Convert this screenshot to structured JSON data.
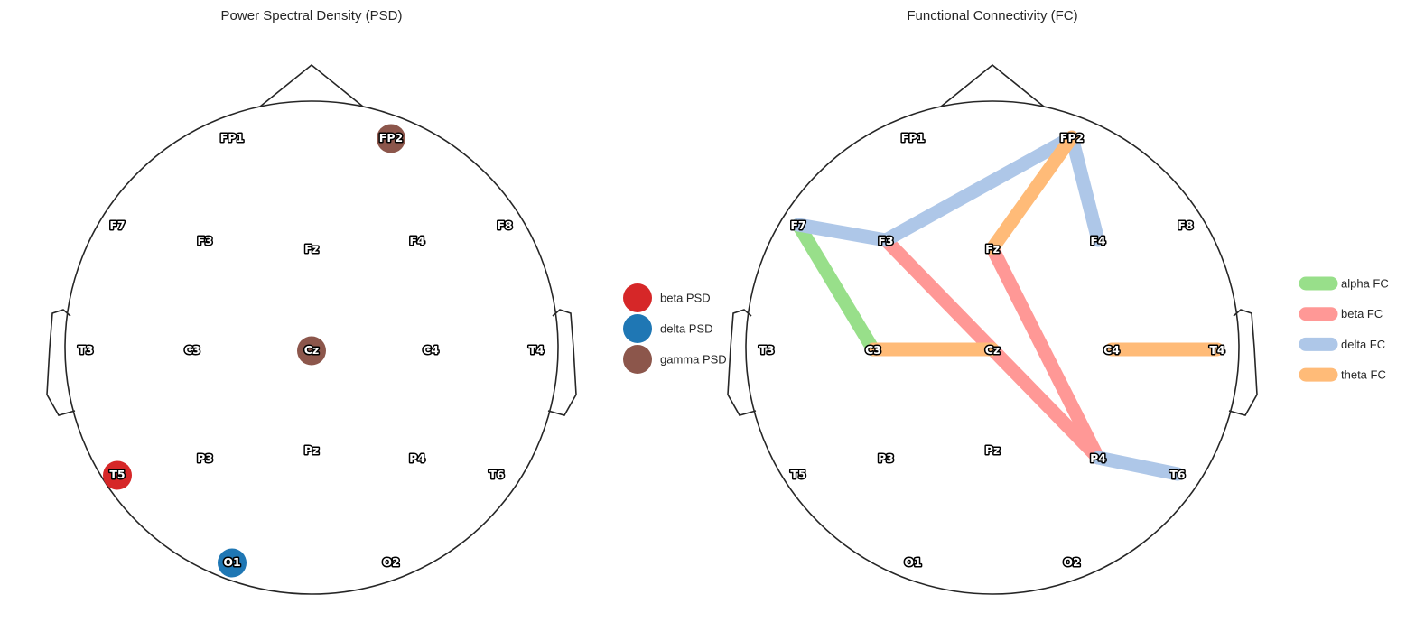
{
  "figure": {
    "panels": [
      {
        "id": "psd",
        "title": "Power Spectral Density (PSD)",
        "electrodes": [
          "FP1",
          "FP2",
          "F7",
          "F3",
          "Fz",
          "F4",
          "F8",
          "T3",
          "C3",
          "Cz",
          "C4",
          "T4",
          "T5",
          "P3",
          "Pz",
          "P4",
          "T6",
          "O1",
          "O2"
        ],
        "markers": [
          {
            "electrode": "FP2",
            "band": "gamma"
          },
          {
            "electrode": "Cz",
            "band": "gamma"
          },
          {
            "electrode": "T5",
            "band": "beta"
          },
          {
            "electrode": "O1",
            "band": "delta"
          }
        ],
        "legend": [
          {
            "label": "beta PSD",
            "color": "#d62728"
          },
          {
            "label": "delta PSD",
            "color": "#1f77b4"
          },
          {
            "label": "gamma PSD",
            "color": "#8c564b"
          }
        ]
      },
      {
        "id": "fc",
        "title": "Functional Connectivity (FC)",
        "electrodes": [
          "FP1",
          "FP2",
          "F7",
          "F3",
          "Fz",
          "F4",
          "F8",
          "T3",
          "C3",
          "Cz",
          "C4",
          "T4",
          "T5",
          "P3",
          "Pz",
          "P4",
          "T6",
          "O1",
          "O2"
        ],
        "connections": [
          {
            "from": "F7",
            "to": "C3",
            "band": "alpha"
          },
          {
            "from": "F3",
            "to": "P4",
            "band": "beta"
          },
          {
            "from": "Fz",
            "to": "P4",
            "band": "beta"
          },
          {
            "from": "F7",
            "to": "F3",
            "band": "delta"
          },
          {
            "from": "F3",
            "to": "FP2",
            "band": "delta"
          },
          {
            "from": "FP2",
            "to": "F4",
            "band": "delta"
          },
          {
            "from": "P4",
            "to": "T6",
            "band": "delta"
          },
          {
            "from": "FP2",
            "to": "Fz",
            "band": "theta"
          },
          {
            "from": "C3",
            "to": "Cz",
            "band": "theta"
          },
          {
            "from": "C4",
            "to": "T4",
            "band": "theta"
          }
        ],
        "legend": [
          {
            "label": "alpha FC",
            "color": "#98df8a"
          },
          {
            "label": "beta FC",
            "color": "#ff9896"
          },
          {
            "label": "delta FC",
            "color": "#aec7e8"
          },
          {
            "label": "theta FC",
            "color": "#ffbb78"
          }
        ]
      }
    ],
    "band_colors": {
      "psd": {
        "beta": "#d62728",
        "delta": "#1f77b4",
        "gamma": "#8c564b"
      },
      "fc": {
        "alpha": "#98df8a",
        "beta": "#ff9896",
        "delta": "#aec7e8",
        "theta": "#ffbb78"
      }
    }
  }
}
